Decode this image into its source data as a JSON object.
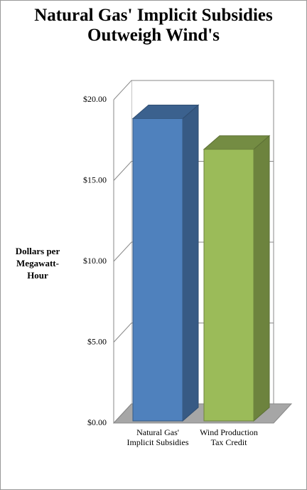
{
  "chart_data": {
    "type": "bar3d",
    "title": "Natural Gas' Implicit Subsidies Outweigh Wind's",
    "y_label": "Dollars per Megawatt-Hour",
    "categories": [
      "Natural Gas' Implicit Subsidies",
      "Wind Production Tax Credit"
    ],
    "values": [
      18.7,
      16.8
    ],
    "colors": [
      "#4f81bd",
      "#9bbb59"
    ],
    "ylim": [
      0,
      20
    ],
    "yticks": [
      {
        "value": 0,
        "label": "$0.00"
      },
      {
        "value": 5,
        "label": "$5.00"
      },
      {
        "value": 10,
        "label": "$10.00"
      },
      {
        "value": 15,
        "label": "$15.00"
      },
      {
        "value": 20,
        "label": "$20.00"
      }
    ],
    "grid": true
  }
}
